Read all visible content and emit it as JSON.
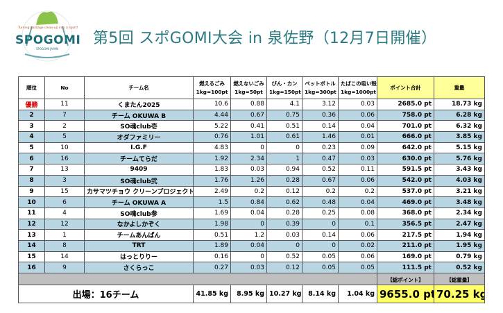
{
  "logo": {
    "text": "SPOGOMI",
    "tagline": "Turning garbage clean-up into a sport!",
    "sub": "SPOGOMI JAPAN"
  },
  "title": "第5回 スポGOMI大会 in 泉佐野（12月7日開催）",
  "headers": {
    "rank": "順位",
    "no": "No",
    "team": "チーム名",
    "burnable": [
      "燃えるごみ",
      "1kg=100pt"
    ],
    "nonburnable": [
      "燃えないごみ",
      "1kg=50pt"
    ],
    "bottles_cans": [
      "びん・カン",
      "1kg=150pt"
    ],
    "pet": [
      "ペットボトル",
      "1kg=300pt"
    ],
    "cigarette": [
      "たばこの吸い殻",
      "1kg=1000pt"
    ],
    "points_total": "ポイント合計",
    "weight": "重量"
  },
  "rows": [
    {
      "rank": "優勝",
      "no": "11",
      "team": "くまたん2025",
      "burnable": "10.6",
      "nonburnable": "0.88",
      "bottles_cans": "4.1",
      "pet": "3.12",
      "cigarette": "0.03",
      "points": "2685.0 pt",
      "weight": "18.73 kg",
      "highlight": false,
      "winner": true
    },
    {
      "rank": "2",
      "no": "7",
      "team": "チーム OKUWA B",
      "burnable": "4.44",
      "nonburnable": "0.67",
      "bottles_cans": "0.75",
      "pet": "0.36",
      "cigarette": "0.06",
      "points": "758.0 pt",
      "weight": "6.28 kg",
      "highlight": true
    },
    {
      "rank": "3",
      "no": "2",
      "team": "SO魂club壱",
      "burnable": "5.22",
      "nonburnable": "0.41",
      "bottles_cans": "0.51",
      "pet": "0.14",
      "cigarette": "0.04",
      "points": "701.0 pt",
      "weight": "6.32 kg",
      "highlight": false
    },
    {
      "rank": "4",
      "no": "5",
      "team": "オダファミリー",
      "burnable": "0.76",
      "nonburnable": "1.01",
      "bottles_cans": "0.61",
      "pet": "1.46",
      "cigarette": "0.01",
      "points": "666.0 pt",
      "weight": "3.85 kg",
      "highlight": true
    },
    {
      "rank": "5",
      "no": "10",
      "team": "I.G.F",
      "burnable": "4.83",
      "nonburnable": "0",
      "bottles_cans": "0",
      "pet": "0.23",
      "cigarette": "0.09",
      "points": "642.0 pt",
      "weight": "5.15 kg",
      "highlight": false
    },
    {
      "rank": "6",
      "no": "16",
      "team": "チームてらだ",
      "burnable": "1.92",
      "nonburnable": "2.34",
      "bottles_cans": "1",
      "pet": "0.47",
      "cigarette": "0.03",
      "points": "630.0 pt",
      "weight": "5.76 kg",
      "highlight": true
    },
    {
      "rank": "7",
      "no": "13",
      "team": "9409",
      "burnable": "1.83",
      "nonburnable": "0.03",
      "bottles_cans": "0.94",
      "pet": "0.52",
      "cigarette": "0.11",
      "points": "591.5 pt",
      "weight": "3.43 kg",
      "highlight": false
    },
    {
      "rank": "8",
      "no": "3",
      "team": "SO魂club弐",
      "burnable": "1.76",
      "nonburnable": "1.26",
      "bottles_cans": "0.28",
      "pet": "0.67",
      "cigarette": "0.06",
      "points": "542.0 pt",
      "weight": "4.03 kg",
      "highlight": true
    },
    {
      "rank": "9",
      "no": "15",
      "team": "カサマツチョウ クリーンプロジェクト",
      "burnable": "2.49",
      "nonburnable": "0.2",
      "bottles_cans": "0.12",
      "pet": "0.2",
      "cigarette": "0.2",
      "points": "537.0 pt",
      "weight": "3.21 kg",
      "highlight": false
    },
    {
      "rank": "10",
      "no": "6",
      "team": "チーム OKUWA A",
      "burnable": "1.5",
      "nonburnable": "0.84",
      "bottles_cans": "0.62",
      "pet": "0.48",
      "cigarette": "0.04",
      "points": "469.0 pt",
      "weight": "3.48 kg",
      "highlight": true
    },
    {
      "rank": "11",
      "no": "4",
      "team": "SO魂club参",
      "burnable": "1.69",
      "nonburnable": "0.04",
      "bottles_cans": "0.28",
      "pet": "0.25",
      "cigarette": "0.08",
      "points": "368.0 pt",
      "weight": "2.34 kg",
      "highlight": false
    },
    {
      "rank": "12",
      "no": "12",
      "team": "なかよしかぞく",
      "burnable": "1.98",
      "nonburnable": "0",
      "bottles_cans": "0.39",
      "pet": "0",
      "cigarette": "0.1",
      "points": "356.5 pt",
      "weight": "2.47 kg",
      "highlight": true
    },
    {
      "rank": "13",
      "no": "1",
      "team": "チームあんぱん",
      "burnable": "0.51",
      "nonburnable": "1.2",
      "bottles_cans": "0.03",
      "pet": "0.14",
      "cigarette": "0.06",
      "points": "217.5 pt",
      "weight": "1.94 kg",
      "highlight": false
    },
    {
      "rank": "14",
      "no": "8",
      "team": "TRT",
      "burnable": "1.89",
      "nonburnable": "0.04",
      "bottles_cans": "0",
      "pet": "0",
      "cigarette": "0.02",
      "points": "211.0 pt",
      "weight": "1.95 kg",
      "highlight": true
    },
    {
      "rank": "15",
      "no": "14",
      "team": "はっとりりー",
      "burnable": "0.16",
      "nonburnable": "0",
      "bottles_cans": "0.52",
      "pet": "0.05",
      "cigarette": "0.06",
      "points": "169.0 pt",
      "weight": "0.79 kg",
      "highlight": false
    },
    {
      "rank": "16",
      "no": "9",
      "team": "さくらっこ",
      "burnable": "0.27",
      "nonburnable": "0.03",
      "bottles_cans": "0.12",
      "pet": "0.05",
      "cigarette": "0.05",
      "points": "111.5 pt",
      "weight": "0.52 kg",
      "highlight": true
    }
  ],
  "summary": {
    "points_label": "【総ポイント】",
    "weight_label": "【総重量】",
    "entries": "出場：16チーム",
    "burnable_total": "41.85 kg",
    "nonburnable_total": "8.95 kg",
    "bottles_cans_total": "10.27 kg",
    "pet_total": "8.14 kg",
    "cigarette_total": "1.04 kg",
    "points_total": "9655.0 pt",
    "weight_total": "70.25 kg"
  },
  "colors": {
    "title": "#2b7a82",
    "row_highlight": "#b8d6e4",
    "total_highlight": "#ffff99",
    "winner": "#d40000"
  }
}
